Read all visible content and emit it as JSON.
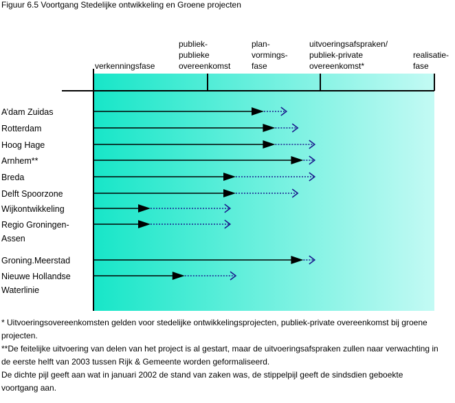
{
  "figure": {
    "title": "Figuur 6.5 Voortgang Stedelijke ontwikkeling en Groene projecten"
  },
  "colors": {
    "gradient_start": "#17e6c8",
    "gradient_end": "#c3faf4",
    "arrow": "#000000",
    "dotted_arrow": "#1a1a8c"
  },
  "chart_data": {
    "type": "bar",
    "x_scale": "ordinal phases",
    "phases": [
      {
        "label": [
          "verkenningsfase"
        ]
      },
      {
        "label": [
          "publiek-",
          "publieke",
          "overeenkomst"
        ]
      },
      {
        "label": [
          "plan-",
          "vormings-",
          "fase"
        ]
      },
      {
        "label": [
          "uitvoeringsafspraken/",
          "publiek-private",
          "overeenkomst*"
        ]
      },
      {
        "label": [
          "realisatie-",
          "fase"
        ]
      }
    ],
    "phase_range": [
      0,
      3
    ],
    "series": [
      {
        "name": "stand januari 2002 (dichte pijl)",
        "values": [
          1.5,
          1.6,
          1.6,
          1.85,
          1.25,
          1.25,
          0.5,
          0.5,
          1.85,
          0.8
        ]
      },
      {
        "name": "geboekte voortgang (stippelpijl)",
        "values": [
          1.7,
          1.8,
          1.95,
          1.95,
          1.95,
          1.8,
          1.2,
          1.2,
          1.95,
          1.25
        ]
      }
    ],
    "rows": [
      {
        "label": [
          "A’dam Zuidas"
        ]
      },
      {
        "label": [
          "Rotterdam"
        ]
      },
      {
        "label": [
          "Hoog Hage"
        ]
      },
      {
        "label": [
          "Arnhem**"
        ]
      },
      {
        "label": [
          "Breda"
        ]
      },
      {
        "label": [
          "Delft Spoorzone"
        ]
      },
      {
        "label": [
          "Wijkontwikkeling"
        ]
      },
      {
        "label": [
          "Regio Groningen-",
          "Assen"
        ]
      },
      {
        "label": [
          "Groning.Meerstad"
        ]
      },
      {
        "label": [
          "Nieuwe Hollandse",
          "Waterlinie"
        ]
      }
    ]
  },
  "notes": [
    "* Uitvoeringsovereenkomsten gelden voor stedelijke ontwikkelingsprojecten, publiek-private overeenkomst bij groene projecten.",
    "**De feitelijke uitvoering van delen van het project is al gestart, maar de uitvoeringsafspraken zullen naar verwachting in de eerste helft van 2003 tussen Rijk & Gemeente worden geformaliseerd.",
    "De dichte pijl geeft aan wat in januari 2002 de stand van zaken was, de stippelpijl geeft de sindsdien geboekte voortgang aan."
  ]
}
